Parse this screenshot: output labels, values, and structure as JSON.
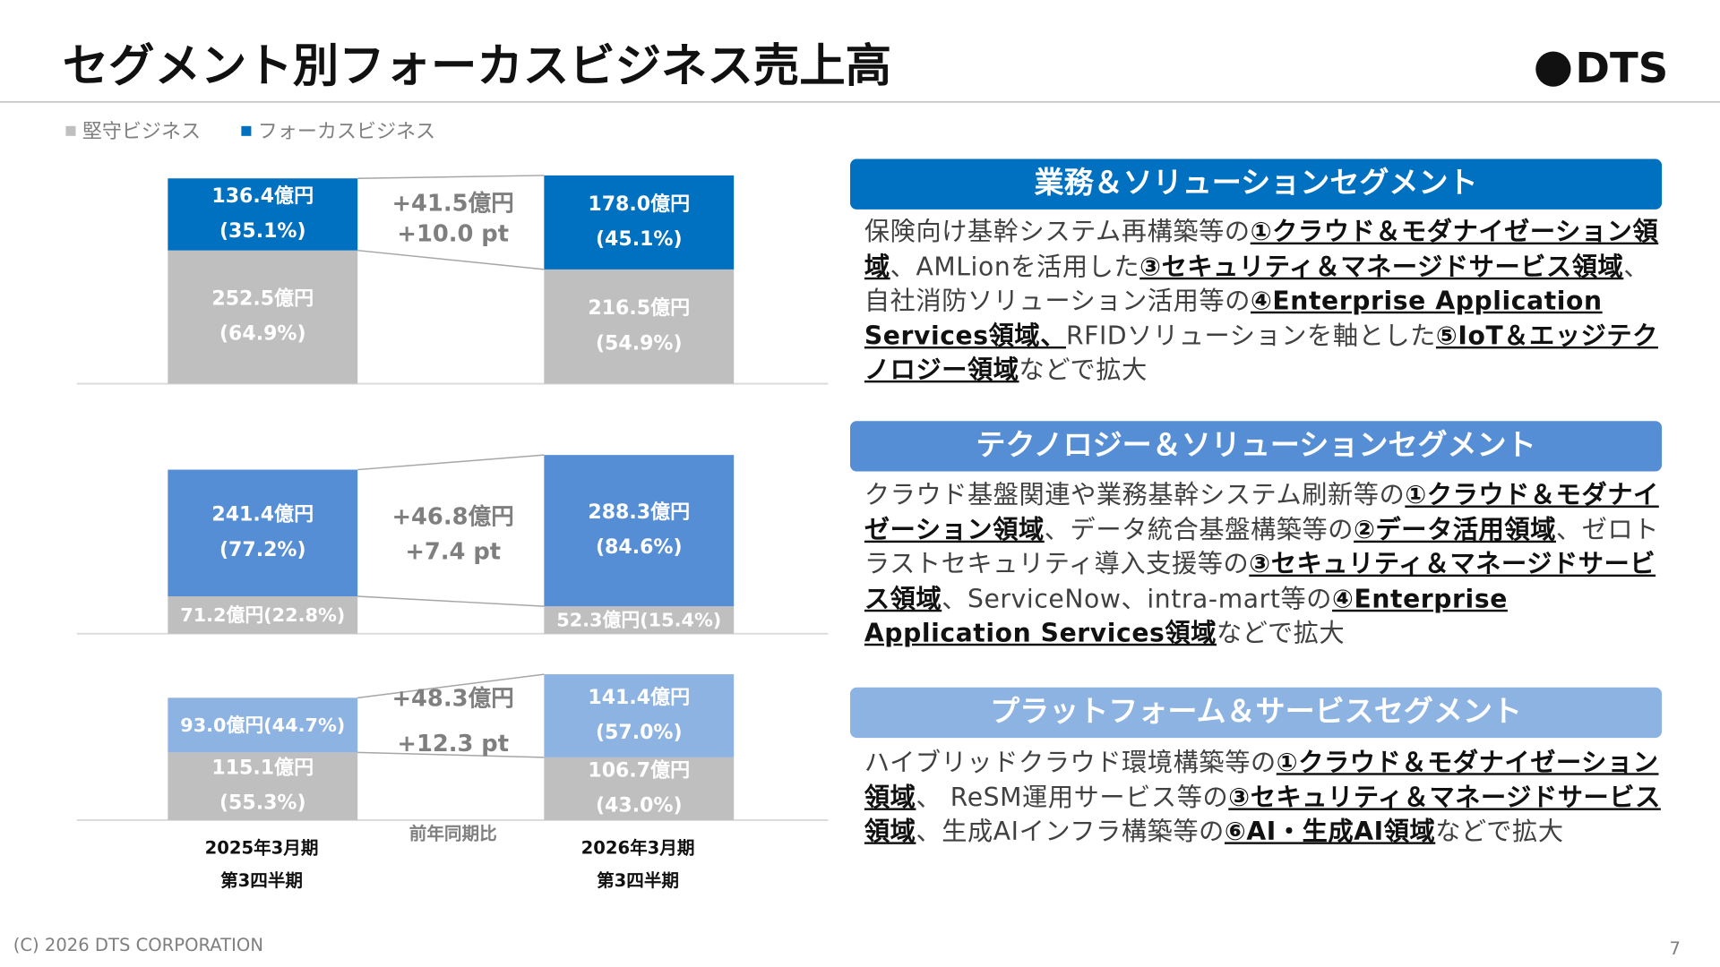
{
  "title": "セグメント別フォーカスビジネス売上高",
  "logo": "DTS",
  "chart_data": [
    {
      "type": "bar",
      "stacked": true,
      "series": [
        {
          "name": "堅守ビジネス",
          "color": "#bfbfbf",
          "values": [
            252.5,
            216.5
          ],
          "value_labels": [
            "252.5億円",
            "216.5億円"
          ],
          "shares": [
            64.9,
            54.9
          ],
          "share_labels": [
            "(64.9%)",
            "(54.9%)"
          ]
        },
        {
          "name": "フォーカスビジネス",
          "color": "#0070c0",
          "values": [
            136.4,
            178.0
          ],
          "value_labels": [
            "136.4億円",
            "178.0億円"
          ],
          "shares": [
            35.1,
            45.1
          ],
          "share_labels": [
            "(35.1%)",
            "(45.1%)"
          ]
        }
      ],
      "annotations": [
        "+41.5億円",
        "+10.0 pt"
      ]
    },
    {
      "type": "bar",
      "stacked": true,
      "series": [
        {
          "color": "#bfbfbf",
          "values": [
            71.2,
            52.3
          ],
          "value_labels": [
            "71.2億円",
            "52.3億円"
          ],
          "shares": [
            22.8,
            15.4
          ],
          "share_labels": [
            "(22.8%)",
            "(15.4%)"
          ]
        },
        {
          "color": "#558ed5",
          "values": [
            241.4,
            288.3
          ],
          "value_labels": [
            "241.4億円",
            "288.3億円"
          ],
          "shares": [
            77.2,
            84.6
          ],
          "share_labels": [
            "(77.2%)",
            "(84.6%)"
          ]
        }
      ],
      "annotations": [
        "+46.8億円",
        "+7.4 pt"
      ]
    },
    {
      "type": "bar",
      "stacked": true,
      "categories": [
        "2025年3月期",
        "2026年3月期"
      ],
      "category_sublabels": [
        "第3四半期",
        "第3四半期"
      ],
      "comparison_label": "前年同期比",
      "series": [
        {
          "color": "#bfbfbf",
          "values": [
            115.1,
            106.7
          ],
          "value_labels": [
            "115.1億円",
            "106.7億円"
          ],
          "shares": [
            55.3,
            43.0
          ],
          "share_labels": [
            "(55.3%)",
            "(43.0%)"
          ]
        },
        {
          "color": "#8db3e2",
          "values": [
            93.0,
            141.4
          ],
          "value_labels": [
            "93.0億円",
            "141.4億円"
          ],
          "shares": [
            44.7,
            57.0
          ],
          "share_labels": [
            "(44.7%)",
            "(57.0%)"
          ]
        }
      ],
      "annotations": [
        "+48.3億円",
        "+12.3 pt"
      ]
    }
  ],
  "panels": [
    {
      "title": "業務＆ソリューションセグメント",
      "color": "#0070c0",
      "runs": [
        {
          "text": "保険向け基幹システム再構築等の",
          "em": false
        },
        {
          "text": "①クラウド＆モダナイゼーション領域",
          "em": true
        },
        {
          "text": "、AMLionを活用した",
          "em": false
        },
        {
          "text": "③セキュリティ＆マネージドサービス領域",
          "em": true
        },
        {
          "text": "、自社消防ソリューション活用等の",
          "em": false
        },
        {
          "text": "④Enterprise Application Services領域、",
          "em": true
        },
        {
          "text": "RFIDソリューションを軸とした",
          "em": false
        },
        {
          "text": "⑤IoT＆エッジテクノロジー領域",
          "em": true
        },
        {
          "text": "などで拡大",
          "em": false
        }
      ]
    },
    {
      "title": "テクノロジー＆ソリューションセグメント",
      "color": "#558ed5",
      "runs": [
        {
          "text": "クラウド基盤関連や業務基幹システム刷新等の",
          "em": false
        },
        {
          "text": "①クラウド＆モダナイゼーション領域",
          "em": true
        },
        {
          "text": "、データ統合基盤構築等の",
          "em": false
        },
        {
          "text": "②データ活用領域",
          "em": true
        },
        {
          "text": "、ゼロトラストセキュリティ導入支援等の",
          "em": false
        },
        {
          "text": "③セキュリティ＆マネージドサービス領域",
          "em": true
        },
        {
          "text": "、ServiceNow、intra-mart等の",
          "em": false
        },
        {
          "text": "④Enterprise Application Services領域",
          "em": true
        },
        {
          "text": "などで拡大",
          "em": false
        }
      ]
    },
    {
      "title": "プラットフォーム＆サービスセグメント",
      "color": "#8db3e2",
      "runs": [
        {
          "text": "ハイブリッドクラウド環境構築等の",
          "em": false
        },
        {
          "text": "①クラウド＆モダナイゼーション領域",
          "em": true
        },
        {
          "text": "、 ReSM運用サービス等の",
          "em": false
        },
        {
          "text": "③セキュリティ＆マネージドサービス領域",
          "em": true
        },
        {
          "text": "、生成AIインフラ構築等の",
          "em": false
        },
        {
          "text": "⑥AI・生成AI領域",
          "em": true
        },
        {
          "text": "などで拡大",
          "em": false
        }
      ]
    }
  ],
  "footer": "(C) 2026 DTS CORPORATION",
  "page_number": "7"
}
